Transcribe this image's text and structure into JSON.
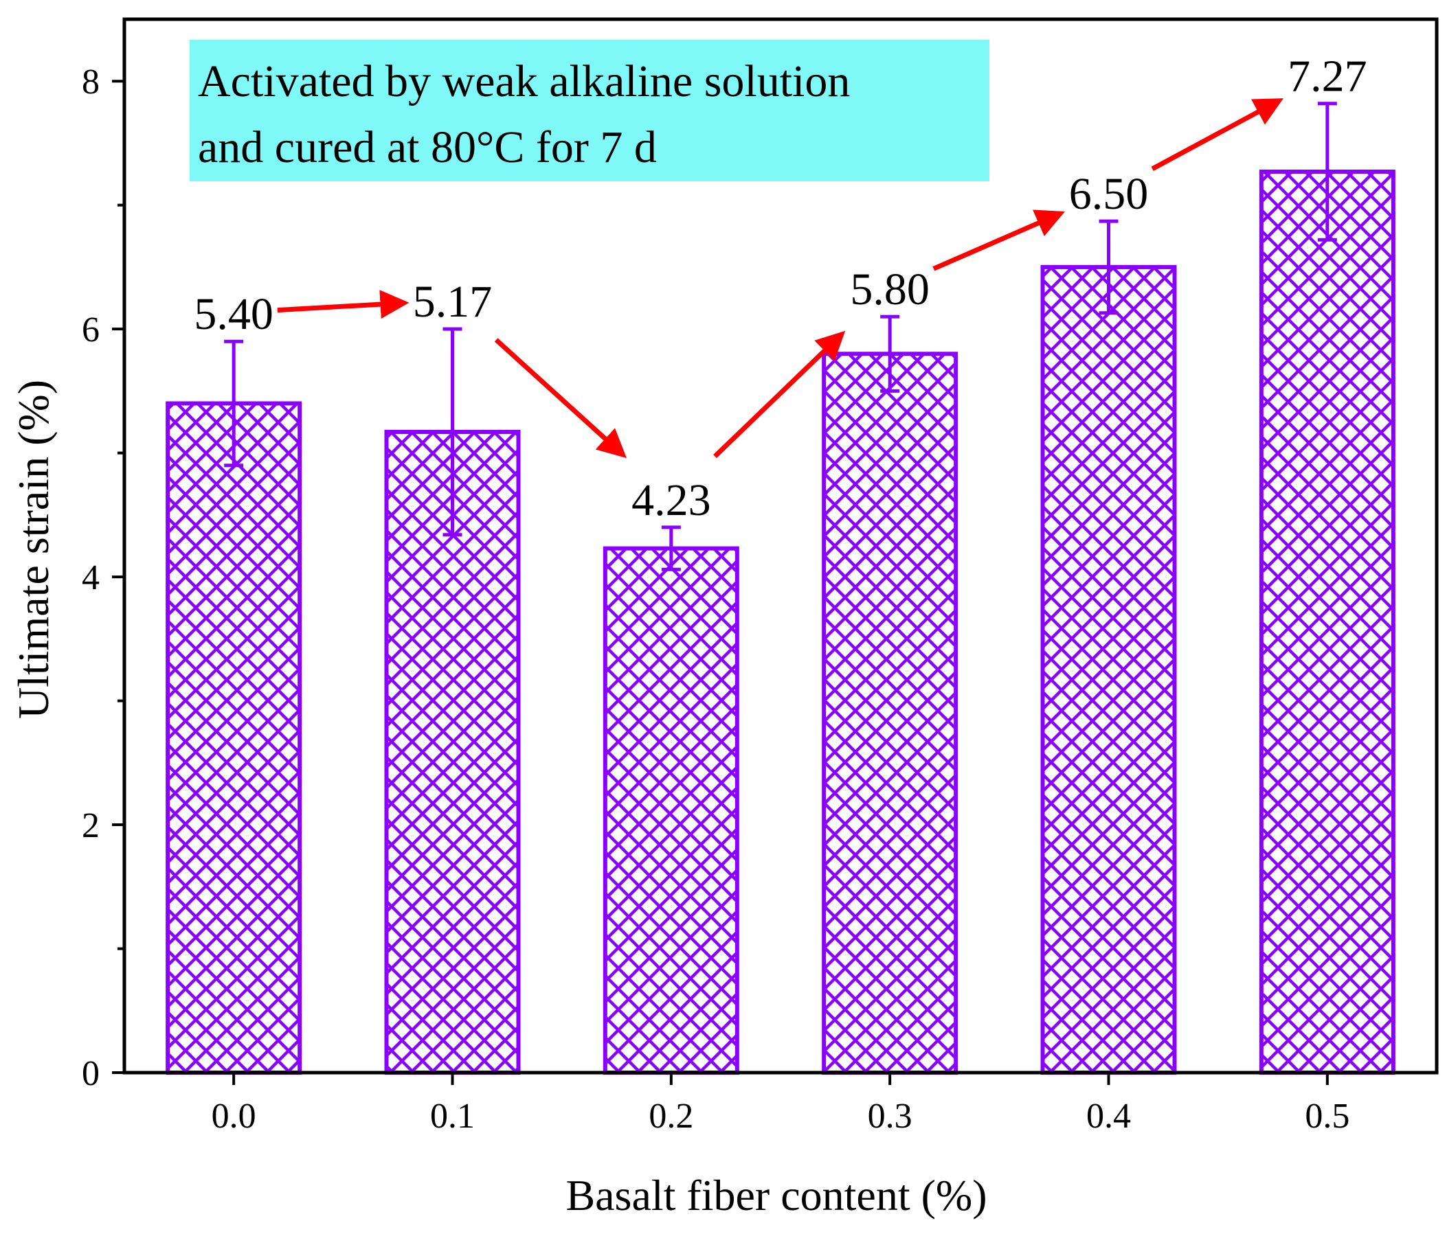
{
  "chart_data": {
    "type": "bar",
    "categories": [
      "0.0",
      "0.1",
      "0.2",
      "0.3",
      "0.4",
      "0.5"
    ],
    "values": [
      5.4,
      5.17,
      4.23,
      5.8,
      6.5,
      7.27
    ],
    "errors": [
      0.5,
      0.83,
      0.17,
      0.3,
      0.37,
      0.55
    ],
    "value_labels": [
      "5.40",
      "5.17",
      "4.23",
      "5.80",
      "6.50",
      "7.27"
    ],
    "xlabel": "Basalt fiber content (%)",
    "ylabel": "Ultimate strain (%)",
    "ylim": [
      0,
      8.5
    ],
    "yticks": [
      0,
      2,
      4,
      6,
      8
    ],
    "ytick_labels": [
      "0",
      "2",
      "4",
      "6",
      "8"
    ],
    "minor_yticks": [
      1,
      3,
      5,
      7
    ],
    "annotation": {
      "lines": [
        "Activated by weak alkaline solution",
        "and cured at 80°C for 7 d"
      ]
    },
    "trend_arrows": true,
    "colors": {
      "bar": "#8a00ff",
      "arrow": "#ff0000",
      "annotation_bg": "#7ff8f8",
      "axis": "#000000"
    }
  }
}
